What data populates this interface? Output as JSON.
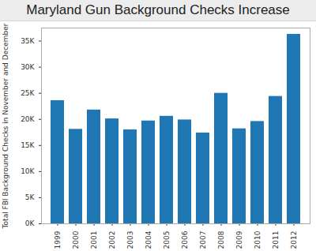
{
  "chart_data": {
    "type": "bar",
    "title": "Maryland Gun Background Checks Increase",
    "y_label": "Total FBI Background Checks in November and December",
    "categories": [
      "1999",
      "2000",
      "2001",
      "2002",
      "2003",
      "2004",
      "2005",
      "2006",
      "2007",
      "2008",
      "2009",
      "2010",
      "2011",
      "2012"
    ],
    "values": [
      23600,
      18100,
      21800,
      20100,
      18000,
      19700,
      20600,
      19900,
      17400,
      25000,
      18200,
      19600,
      24400,
      36300
    ],
    "color": "#1f77b4",
    "ylim": [
      0,
      37500
    ],
    "yticks": [
      {
        "value": 0,
        "label": "0K"
      },
      {
        "value": 5000,
        "label": "5K"
      },
      {
        "value": 10000,
        "label": "10K"
      },
      {
        "value": 15000,
        "label": "15K"
      },
      {
        "value": 20000,
        "label": "20K"
      },
      {
        "value": 25000,
        "label": "25K"
      },
      {
        "value": 30000,
        "label": "30K"
      },
      {
        "value": 35000,
        "label": "35K"
      }
    ],
    "grid": false
  }
}
